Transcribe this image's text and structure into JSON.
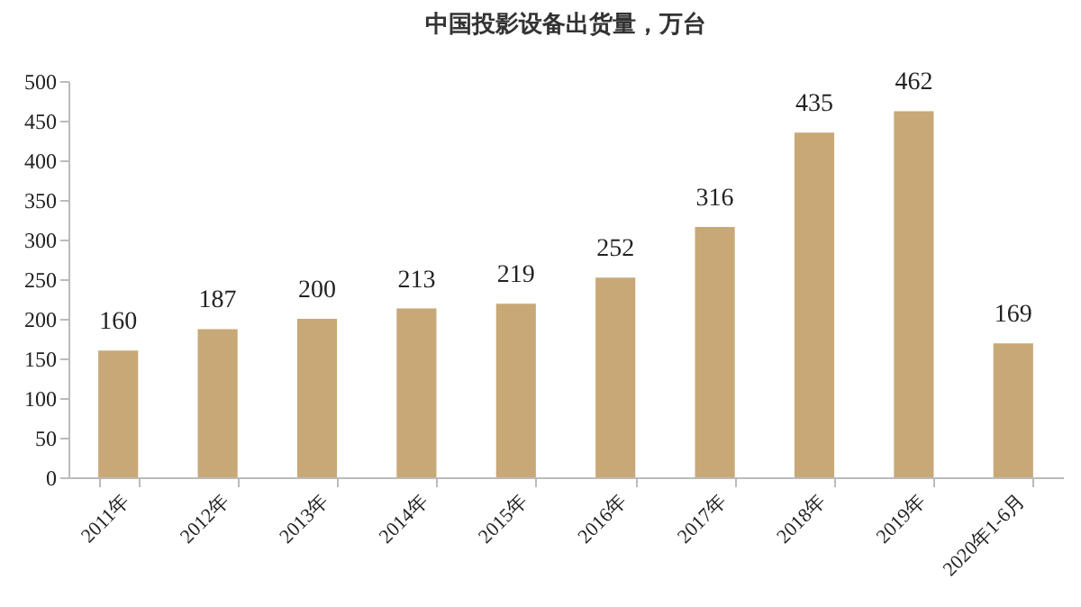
{
  "chart_data": {
    "type": "bar",
    "title": "中国投影设备出货量，万台",
    "categories": [
      "2011年",
      "2012年",
      "2013年",
      "2014年",
      "2015年",
      "2016年",
      "2017年",
      "2018年",
      "2019年",
      "2020年1-6月"
    ],
    "values": [
      160,
      187,
      200,
      213,
      219,
      252,
      316,
      435,
      462,
      169
    ],
    "color": "#c9a877",
    "ylim": [
      0,
      500
    ],
    "yticks": [
      0,
      50,
      100,
      150,
      200,
      250,
      300,
      350,
      400,
      450,
      500
    ],
    "data_labels": true,
    "grid": false
  }
}
